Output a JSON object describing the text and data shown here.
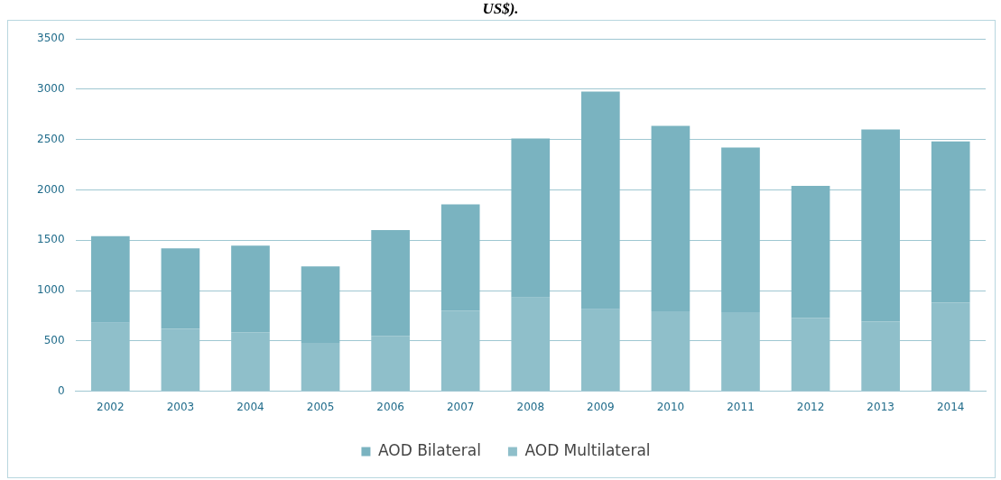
{
  "chart_data": {
    "type": "bar",
    "title": "US$).",
    "categories": [
      "2002",
      "2003",
      "2004",
      "2005",
      "2006",
      "2007",
      "2008",
      "2009",
      "2010",
      "2011",
      "2012",
      "2013",
      "2014"
    ],
    "stacked": true,
    "series": [
      {
        "name": "AOD Multilateral",
        "color": "#8fbfca",
        "values": [
          680,
          620,
          585,
          480,
          550,
          800,
          930,
          815,
          795,
          785,
          730,
          690,
          880
        ]
      },
      {
        "name": "AOD Bilateral",
        "color": "#7ab3c0",
        "values": [
          860,
          800,
          860,
          760,
          1050,
          1055,
          1580,
          2160,
          1840,
          1635,
          1310,
          1910,
          1600
        ]
      }
    ],
    "ylim": [
      0,
      3500
    ],
    "yticks": [
      0,
      500,
      1000,
      1500,
      2000,
      2500,
      3000,
      3500
    ],
    "grid": "y",
    "legend": "bottom"
  }
}
